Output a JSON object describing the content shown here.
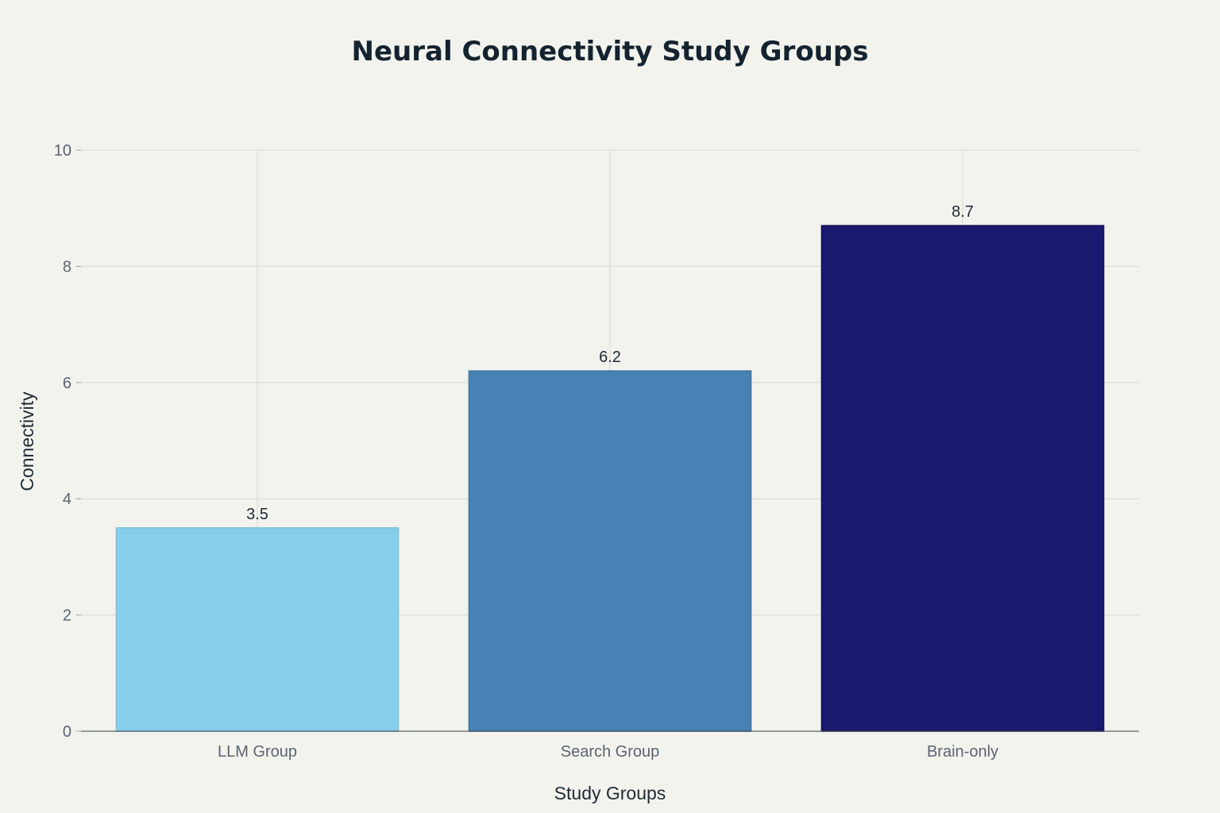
{
  "chart_data": {
    "type": "bar",
    "title": "Neural Connectivity Study Groups",
    "xlabel": "Study Groups",
    "ylabel": "Connectivity",
    "categories": [
      "LLM Group",
      "Search Group",
      "Brain-only"
    ],
    "values": [
      3.5,
      6.2,
      8.7
    ],
    "data_labels": [
      "3.5",
      "6.2",
      "8.7"
    ],
    "colors": [
      "#87ceeb",
      "#4682b4",
      "#191970"
    ],
    "ylim": [
      0,
      10
    ],
    "yticks": [
      0,
      2,
      4,
      6,
      8,
      10
    ],
    "ytick_labels": [
      "0",
      "2",
      "4",
      "6",
      "8",
      "10"
    ],
    "grid": true,
    "legend": "none"
  }
}
